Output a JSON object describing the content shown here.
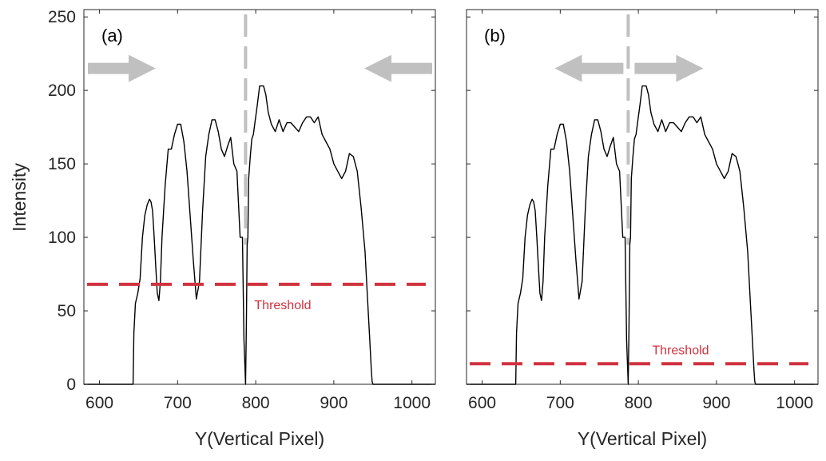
{
  "chart_data": [
    {
      "type": "line",
      "panel_label": "(a)",
      "xlabel": "Y(Vertical Pixel)",
      "ylabel": "Intensity",
      "xlim": [
        580,
        1030
      ],
      "ylim": [
        0,
        255
      ],
      "xticks": [
        600,
        700,
        800,
        900,
        1000
      ],
      "yticks": [
        0,
        50,
        100,
        150,
        200,
        250
      ],
      "grid": false,
      "threshold": {
        "label": "Threshold",
        "value": 68,
        "color": "#d0333f"
      },
      "split_line": {
        "x": 787,
        "color": "#c0c0c0"
      },
      "arrows": {
        "direction": "inward",
        "color": "#c0c0c0"
      },
      "series": [
        {
          "color": "#000000",
          "x": [
            580,
            640,
            643,
            644,
            646,
            649,
            652,
            655,
            658,
            661,
            664,
            666,
            668,
            670,
            672,
            674,
            676,
            678,
            680,
            684,
            688,
            692,
            696,
            700,
            704,
            708,
            712,
            716,
            720,
            724,
            728,
            732,
            736,
            740,
            744,
            748,
            752,
            756,
            760,
            764,
            768,
            772,
            776,
            780,
            783,
            785,
            787,
            788,
            789,
            790,
            791,
            793,
            795,
            797,
            799,
            802,
            805,
            810,
            813,
            816,
            820,
            825,
            830,
            835,
            840,
            845,
            850,
            855,
            860,
            865,
            870,
            875,
            880,
            885,
            890,
            895,
            900,
            905,
            910,
            915,
            920,
            925,
            930,
            935,
            940,
            943,
            946,
            948,
            949,
            950,
            1030
          ],
          "y": [
            0,
            0,
            0,
            35,
            55,
            62,
            72,
            100,
            115,
            122,
            126,
            124,
            118,
            100,
            80,
            62,
            57,
            70,
            100,
            135,
            160,
            160,
            170,
            177,
            177,
            165,
            145,
            115,
            85,
            58,
            70,
            118,
            155,
            170,
            180,
            180,
            172,
            160,
            155,
            162,
            168,
            150,
            145,
            100,
            100,
            30,
            0,
            40,
            95,
            100,
            140,
            155,
            167,
            170,
            178,
            190,
            203,
            203,
            197,
            185,
            177,
            172,
            180,
            172,
            178,
            178,
            175,
            172,
            178,
            182,
            182,
            178,
            182,
            170,
            165,
            160,
            150,
            145,
            140,
            145,
            157,
            155,
            145,
            120,
            90,
            60,
            30,
            10,
            2,
            0,
            0
          ]
        }
      ]
    },
    {
      "type": "line",
      "panel_label": "(b)",
      "xlabel": "Y(Vertical Pixel)",
      "ylabel": "",
      "xlim": [
        580,
        1030
      ],
      "ylim": [
        0,
        255
      ],
      "xticks": [
        600,
        700,
        800,
        900,
        1000
      ],
      "yticks": [
        0,
        50,
        100,
        150,
        200,
        250
      ],
      "grid": false,
      "threshold": {
        "label": "Threshold",
        "value": 14,
        "color": "#d0333f"
      },
      "split_line": {
        "x": 787,
        "color": "#c0c0c0"
      },
      "arrows": {
        "direction": "outward",
        "color": "#c0c0c0"
      },
      "series": [
        {
          "color": "#000000",
          "x": [
            580,
            640,
            643,
            644,
            646,
            649,
            652,
            655,
            658,
            661,
            664,
            666,
            668,
            670,
            672,
            674,
            676,
            678,
            680,
            684,
            688,
            692,
            696,
            700,
            704,
            708,
            712,
            716,
            720,
            724,
            728,
            732,
            736,
            740,
            744,
            748,
            752,
            756,
            760,
            764,
            768,
            772,
            776,
            780,
            783,
            785,
            787,
            788,
            789,
            790,
            791,
            793,
            795,
            797,
            799,
            802,
            805,
            810,
            813,
            816,
            820,
            825,
            830,
            835,
            840,
            845,
            850,
            855,
            860,
            865,
            870,
            875,
            880,
            885,
            890,
            895,
            900,
            905,
            910,
            915,
            920,
            925,
            930,
            935,
            940,
            943,
            946,
            948,
            949,
            950,
            1030
          ],
          "y": [
            0,
            0,
            0,
            35,
            55,
            62,
            72,
            100,
            115,
            122,
            126,
            124,
            118,
            100,
            80,
            62,
            57,
            70,
            100,
            135,
            160,
            160,
            170,
            177,
            177,
            165,
            145,
            115,
            85,
            58,
            70,
            118,
            155,
            170,
            180,
            180,
            172,
            160,
            155,
            162,
            168,
            150,
            145,
            100,
            100,
            30,
            0,
            40,
            95,
            100,
            140,
            155,
            167,
            170,
            178,
            190,
            203,
            203,
            197,
            185,
            177,
            172,
            180,
            172,
            178,
            178,
            175,
            172,
            178,
            182,
            182,
            178,
            182,
            170,
            165,
            160,
            150,
            145,
            140,
            145,
            157,
            155,
            145,
            120,
            90,
            60,
            30,
            10,
            2,
            0,
            0
          ]
        }
      ]
    }
  ]
}
